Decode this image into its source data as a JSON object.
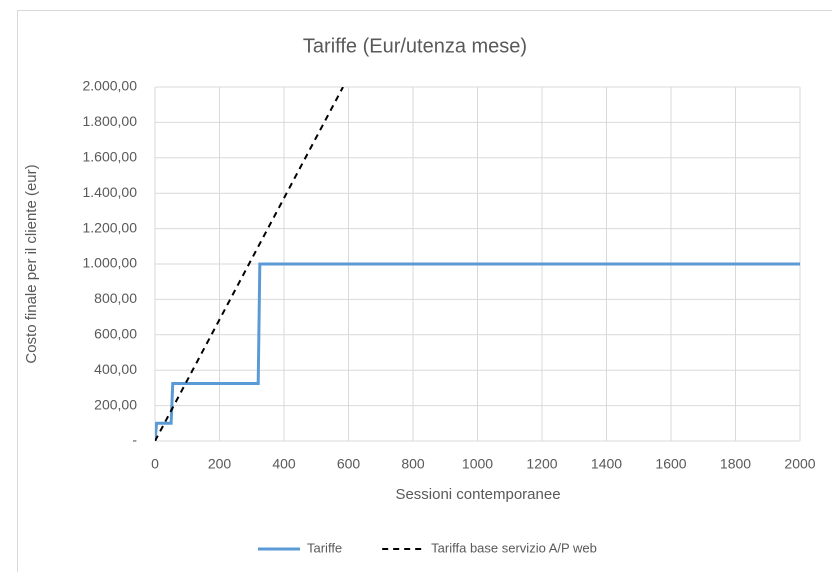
{
  "chart_data": {
    "type": "line",
    "title": "Tariffe (Eur/utenza mese)",
    "xlabel": "Sessioni contemporanee",
    "ylabel": "Costo finale per il cliente (eur)",
    "xlim": [
      0,
      2000
    ],
    "xticks": [
      0,
      200,
      400,
      600,
      800,
      1000,
      1200,
      1400,
      1600,
      1800,
      2000
    ],
    "ylim": [
      0,
      2000
    ],
    "yticks": [
      {
        "value": 0,
        "label": "-"
      },
      {
        "value": 200,
        "label": "200,00"
      },
      {
        "value": 400,
        "label": "400,00"
      },
      {
        "value": 600,
        "label": "600,00"
      },
      {
        "value": 800,
        "label": "800,00"
      },
      {
        "value": 1000,
        "label": "1.000,00"
      },
      {
        "value": 1200,
        "label": "1.200,00"
      },
      {
        "value": 1400,
        "label": "1.400,00"
      },
      {
        "value": 1600,
        "label": "1.600,00"
      },
      {
        "value": 1800,
        "label": "1.800,00"
      },
      {
        "value": 2000,
        "label": "2.000,00"
      }
    ],
    "grid": true,
    "legend": "bottom",
    "series": [
      {
        "name": "Tariffe",
        "color": "#5b9bd5",
        "dashed": false,
        "x": [
          0,
          5,
          50,
          55,
          320,
          325,
          2000
        ],
        "values": [
          0,
          100,
          100,
          325,
          325,
          1000,
          1000
        ]
      },
      {
        "name": "Tariffa base servizio A/P web",
        "color": "#000000",
        "dashed": true,
        "x": [
          0,
          583
        ],
        "values": [
          0,
          2000
        ]
      }
    ]
  }
}
